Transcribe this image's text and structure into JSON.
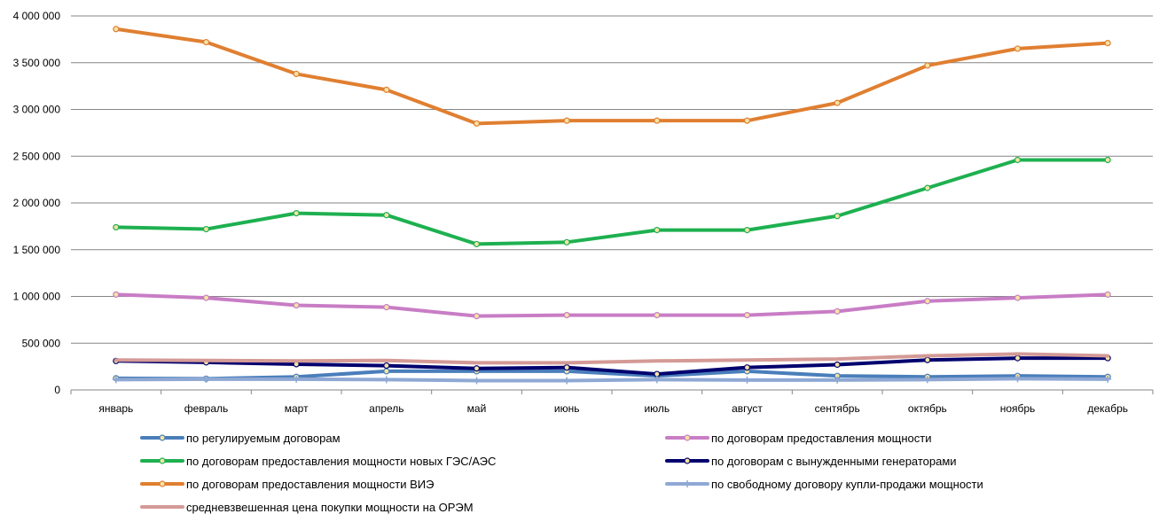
{
  "chart_data": {
    "type": "line",
    "title": "",
    "xlabel": "",
    "ylabel": "",
    "ylim": [
      0,
      4000000
    ],
    "yticks": [
      0,
      500000,
      1000000,
      1500000,
      2000000,
      2500000,
      3000000,
      3500000,
      4000000
    ],
    "ytick_labels": [
      "0",
      "500 000",
      "1 000 000",
      "1 500 000",
      "2 000 000",
      "2 500 000",
      "3 000 000",
      "3 500 000",
      "4 000 000"
    ],
    "grid": true,
    "legend_position": "bottom",
    "categories": [
      "январь",
      "февраль",
      "март",
      "апрель",
      "май",
      "июнь",
      "июль",
      "август",
      "сентябрь",
      "октябрь",
      "ноябрь",
      "декабрь"
    ],
    "series": [
      {
        "name": "по регулируемым договорам",
        "color": "#4a7ebb",
        "marker": "circle",
        "values": [
          125000,
          120000,
          140000,
          200000,
          200000,
          200000,
          150000,
          200000,
          150000,
          140000,
          150000,
          140000
        ]
      },
      {
        "name": "по договорам предоставления мощности",
        "color": "#c87dc5",
        "marker": "circle",
        "values": [
          1020000,
          985000,
          905000,
          885000,
          790000,
          800000,
          800000,
          800000,
          840000,
          950000,
          985000,
          1020000
        ]
      },
      {
        "name": "по договорам предоставления мощности новых ГЭС/АЭС",
        "color": "#1eb050",
        "marker": "circle",
        "values": [
          1740000,
          1720000,
          1890000,
          1870000,
          1560000,
          1580000,
          1710000,
          1710000,
          1860000,
          2160000,
          2460000,
          2460000
        ]
      },
      {
        "name": "по договорам с вынужденными генераторами",
        "color": "#00006e",
        "marker": "circle",
        "values": [
          310000,
          295000,
          275000,
          260000,
          230000,
          240000,
          170000,
          240000,
          270000,
          320000,
          340000,
          340000
        ]
      },
      {
        "name": "по договорам предоставления мощности ВИЭ",
        "color": "#e07f31",
        "marker": "circle",
        "values": [
          3860000,
          3720000,
          3380000,
          3210000,
          2850000,
          2880000,
          2880000,
          2880000,
          3070000,
          3470000,
          3650000,
          3710000
        ]
      },
      {
        "name": "по свободному договору купли-продажи мощности",
        "color": "#8fa8d4",
        "marker": "plus",
        "values": [
          110000,
          115000,
          115000,
          110000,
          100000,
          100000,
          110000,
          105000,
          105000,
          110000,
          120000,
          115000
        ]
      },
      {
        "name": "средневзвешенная цена покупки мощности на ОРЭМ",
        "color": "#d49a96",
        "marker": "none",
        "values": [
          320000,
          315000,
          310000,
          315000,
          290000,
          290000,
          310000,
          320000,
          330000,
          365000,
          385000,
          365000
        ]
      }
    ]
  }
}
